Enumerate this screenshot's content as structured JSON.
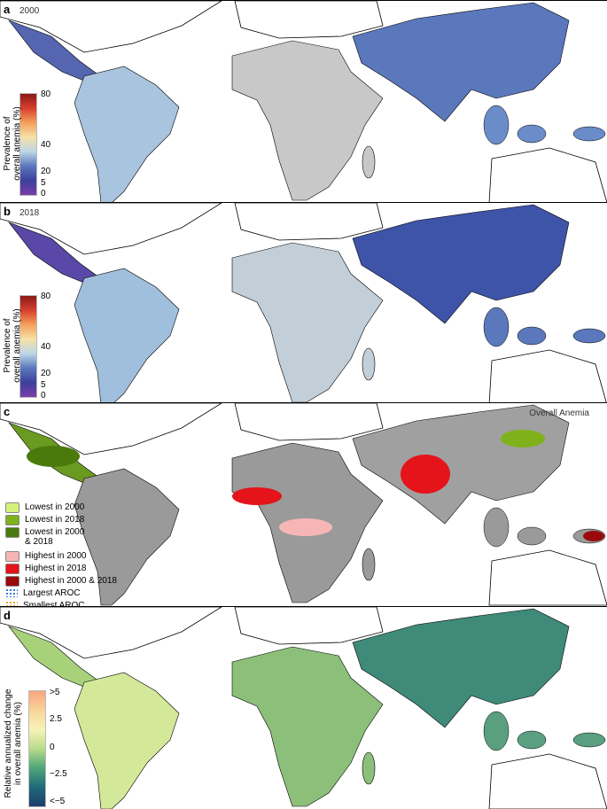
{
  "panels": [
    {
      "label": "a",
      "year": "2000"
    },
    {
      "label": "b",
      "year": "2018"
    },
    {
      "label": "c",
      "title": "Overall Anemia"
    },
    {
      "label": "d"
    }
  ],
  "prevalence_legend": {
    "title_line1": "Prevalence of",
    "title_line2": "overall anemia (%)",
    "ticks": [
      "80",
      "40",
      "20",
      "5",
      "0"
    ]
  },
  "category_legend": [
    {
      "label": "Lowest in 2000",
      "color": "#d4f27a"
    },
    {
      "label": "Lowest in 2018",
      "color": "#7fb21a"
    },
    {
      "label": "Lowest in 2000",
      "label2": "& 2018",
      "color": "#4a7a0c"
    },
    {
      "label": "Highest in 2000",
      "color": "#f7b6b6"
    },
    {
      "label": "Highest in 2018",
      "color": "#e4141a"
    },
    {
      "label": "Highest in 2000 & 2018",
      "color": "#9a0a0a"
    },
    {
      "label": "Largest AROC",
      "color": "#2f6fd6"
    },
    {
      "label": "Smallest AROC",
      "color": "#e8a020"
    }
  ],
  "aroc_legend": {
    "title_line1": "Relative annualized change",
    "title_line2": "in overall anemia (%)",
    "ticks": [
      ">5",
      "2.5",
      "0",
      "−2.5",
      "<−5"
    ]
  }
}
